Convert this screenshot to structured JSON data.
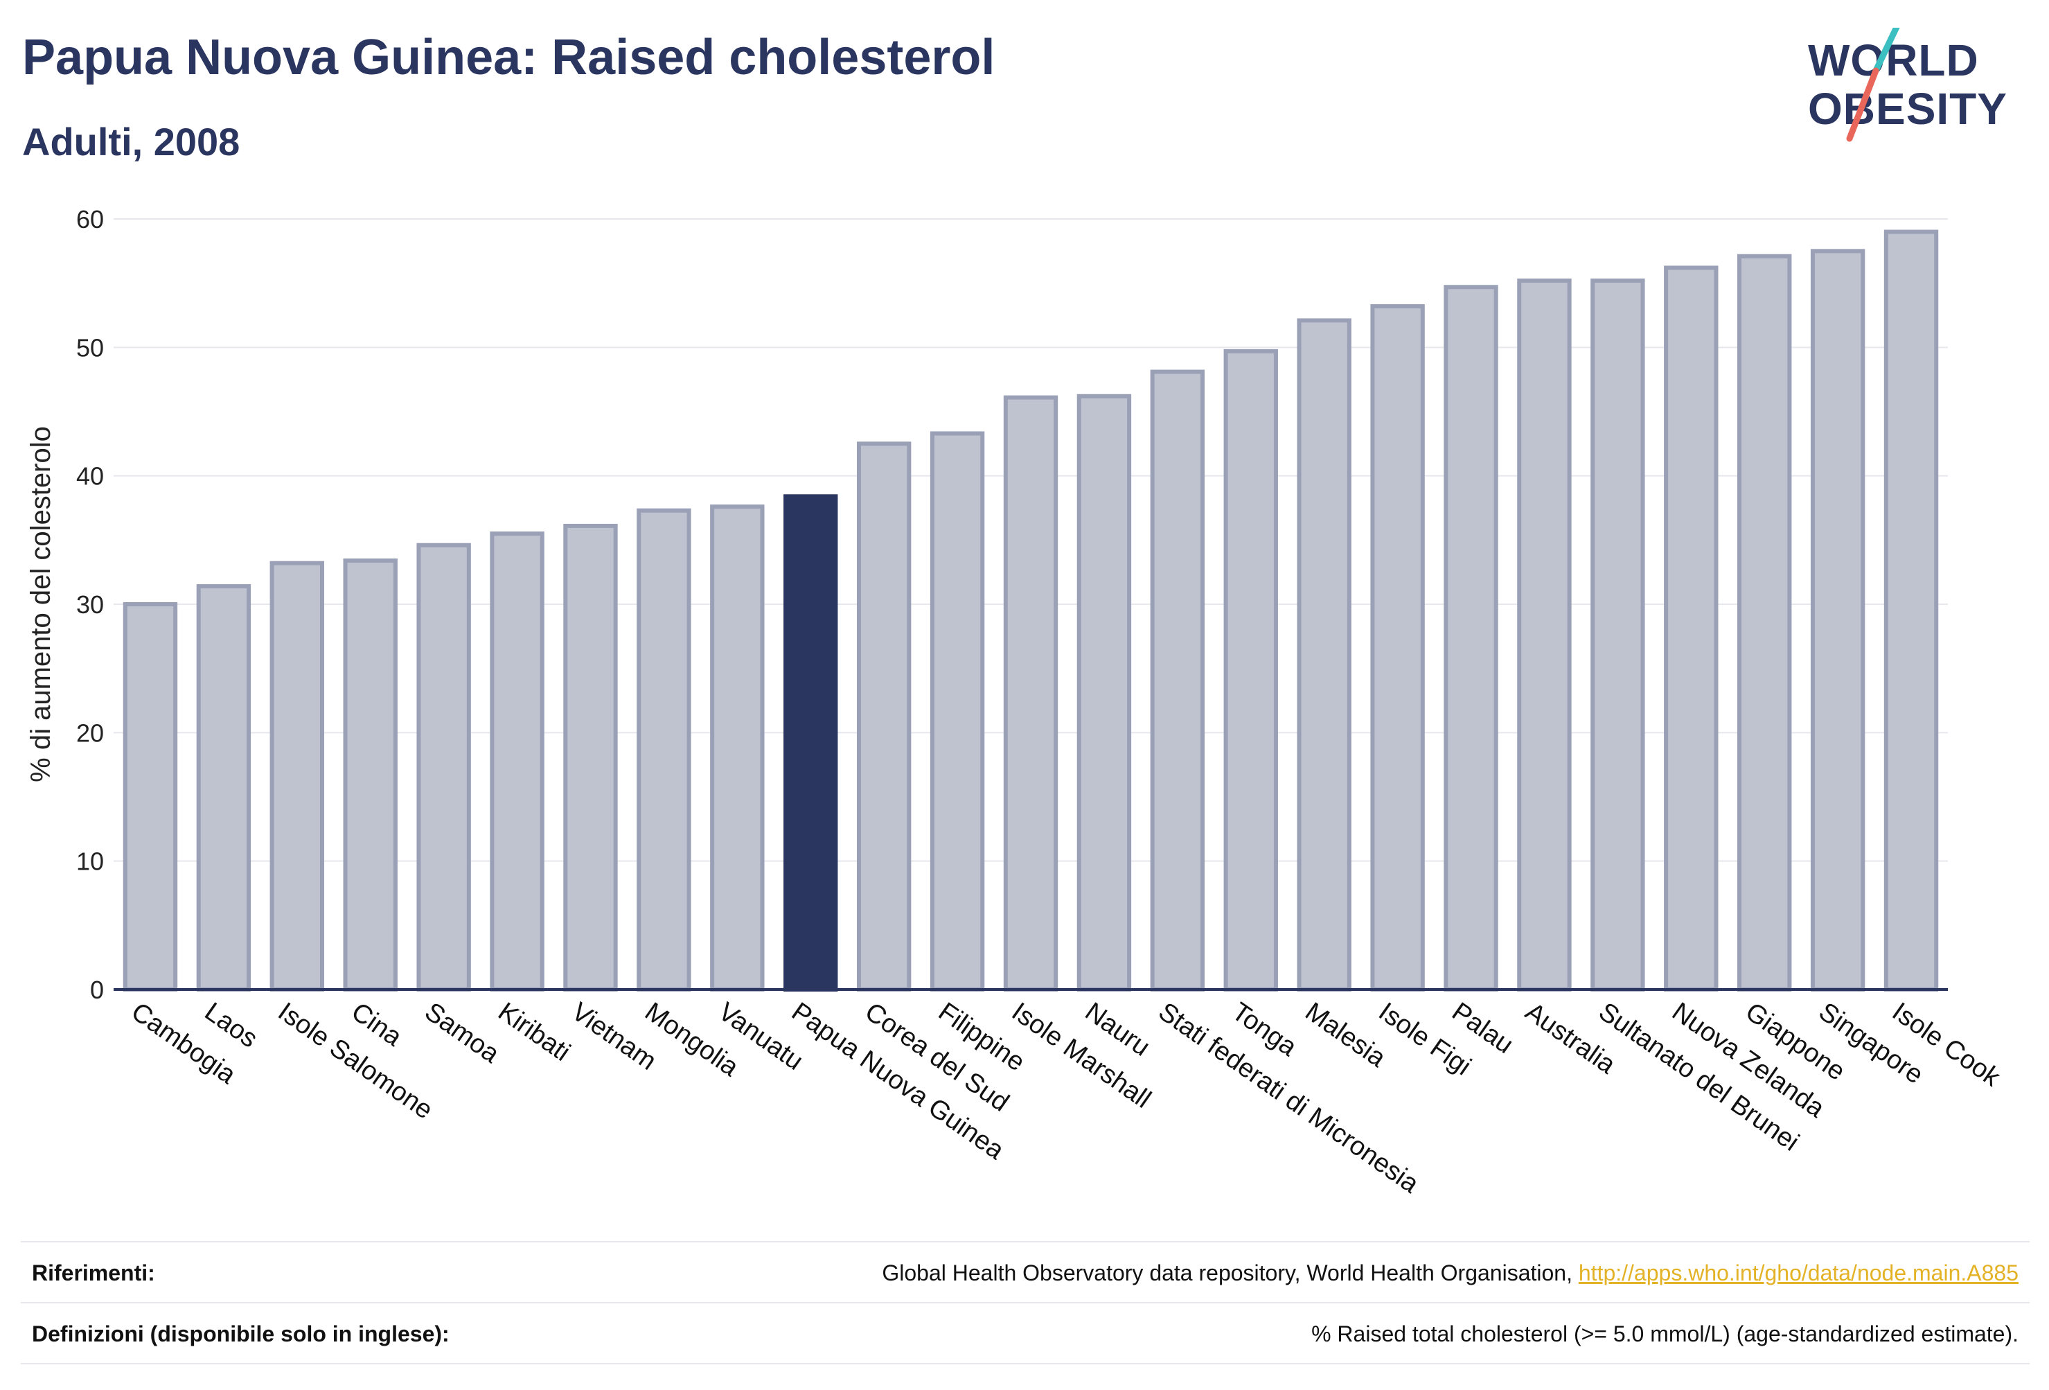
{
  "header": {
    "title": "Papua Nuova Guinea: Raised cholesterol",
    "subtitle": "Adulti, 2008"
  },
  "logo": {
    "line1": "WORLD",
    "line2": "OBESITY",
    "slash_colors": [
      "#3cbfc0",
      "#e8675a"
    ]
  },
  "colors": {
    "bar": "#bfc2cf",
    "bar_border": "#9aa0b6",
    "highlight": "#2a3560",
    "grid": "#e6e8ee",
    "axis": "#2a3560"
  },
  "chart_data": {
    "type": "bar",
    "title": "Papua Nuova Guinea: Raised cholesterol",
    "subtitle": "Adulti, 2008",
    "xlabel": "",
    "ylabel": "% di aumento del colesterolo",
    "ylim": [
      0,
      60
    ],
    "yticks": [
      0,
      10,
      20,
      30,
      40,
      50,
      60
    ],
    "grid": true,
    "highlight": "Papua Nuova Guinea",
    "categories": [
      "Cambogia",
      "Laos",
      "Isole Salomone",
      "Cina",
      "Samoa",
      "Kiribati",
      "Vietnam",
      "Mongolia",
      "Vanuatu",
      "Papua Nuova Guinea",
      "Corea del Sud",
      "Filippine",
      "Isole Marshall",
      "Nauru",
      "Stati federati di Micronesia",
      "Tonga",
      "Malesia",
      "Isole Figi",
      "Palau",
      "Australia",
      "Sultanato del Brunei",
      "Nuova Zelanda",
      "Giappone",
      "Singapore",
      "Isole Cook"
    ],
    "values": [
      30.0,
      31.4,
      33.2,
      33.4,
      34.6,
      35.5,
      36.1,
      37.3,
      37.6,
      38.4,
      42.5,
      43.3,
      46.1,
      46.2,
      48.1,
      49.7,
      52.1,
      53.2,
      54.7,
      55.2,
      55.2,
      56.2,
      57.1,
      57.5,
      59.0
    ]
  },
  "footer": {
    "references_label": "Riferimenti:",
    "references_text": "Global Health Observatory data repository, World Health Organisation, ",
    "references_link": "http://apps.who.int/gho/data/node.main.A885",
    "definitions_label": "Definizioni (disponibile solo in inglese):",
    "definitions_text": "% Raised total cholesterol (>= 5.0 mmol/L) (age-standardized estimate)."
  }
}
